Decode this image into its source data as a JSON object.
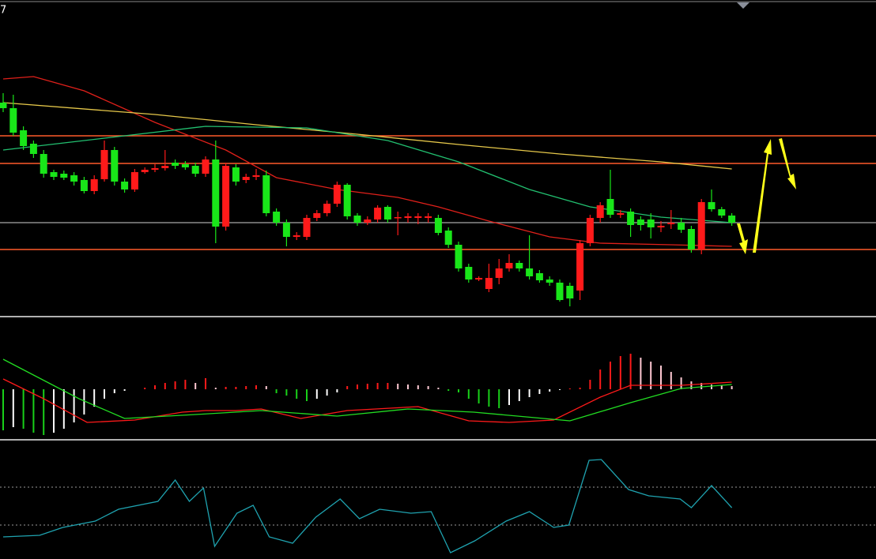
{
  "chart_data": [
    {
      "type": "candlestick",
      "title": "7",
      "xlim": [
        0,
        72
      ],
      "ylim": [
        0,
        400
      ],
      "up_color": "#ff1a1a",
      "down_color": "#19e619",
      "open": [
        270,
        263,
        235,
        218,
        205,
        182,
        180,
        178,
        172,
        158,
        173,
        210,
        170,
        160,
        182,
        185,
        187,
        194,
        192,
        190,
        180,
        198,
        113,
        188,
        172,
        176,
        178,
        132,
        118,
        100,
        100,
        124,
        130,
        142,
        166,
        127,
        118,
        122,
        138,
        124,
        124,
        124,
        124,
        124,
        108,
        90,
        62,
        46,
        34,
        48,
        60,
        67,
        60,
        54,
        46,
        42,
        38,
        32,
        92,
        124,
        148,
        128,
        132,
        122,
        122,
        112,
        116,
        118,
        110,
        84,
        144,
        135,
        127
      ],
      "close": [
        263,
        232,
        215,
        205,
        180,
        176,
        175,
        170,
        158,
        173,
        210,
        170,
        160,
        182,
        185,
        187,
        190,
        190,
        188,
        180,
        198,
        113,
        190,
        170,
        176,
        178,
        130,
        118,
        100,
        102,
        124,
        130,
        142,
        166,
        126,
        118,
        122,
        137,
        122,
        125,
        126,
        126,
        126,
        105,
        90,
        60,
        46,
        48,
        48,
        60,
        67,
        60,
        50,
        45,
        42,
        20,
        22,
        92,
        124,
        140,
        128,
        130,
        115,
        115,
        112,
        114,
        118,
        109,
        84,
        144,
        135,
        127,
        118
      ],
      "high": [
        282,
        280,
        240,
        222,
        210,
        185,
        184,
        182,
        176,
        178,
        222,
        214,
        174,
        186,
        188,
        192,
        210,
        198,
        196,
        194,
        202,
        222,
        194,
        192,
        180,
        186,
        184,
        136,
        122,
        106,
        128,
        134,
        146,
        170,
        168,
        130,
        126,
        140,
        140,
        132,
        130,
        130,
        130,
        128,
        112,
        94,
        66,
        50,
        66,
        72,
        78,
        70,
        102,
        58,
        50,
        46,
        42,
        96,
        128,
        144,
        185,
        134,
        136,
        126,
        130,
        120,
        134,
        124,
        114,
        148,
        160,
        138,
        130
      ],
      "low": [
        258,
        228,
        210,
        200,
        175,
        172,
        172,
        165,
        155,
        154,
        170,
        165,
        156,
        157,
        180,
        182,
        184,
        186,
        185,
        176,
        176,
        92,
        108,
        165,
        168,
        172,
        126,
        114,
        88,
        96,
        96,
        120,
        126,
        138,
        122,
        114,
        115,
        118,
        118,
        102,
        118,
        116,
        118,
        102,
        86,
        56,
        42,
        44,
        30,
        40,
        56,
        56,
        46,
        42,
        38,
        18,
        12,
        20,
        88,
        118,
        124,
        124,
        100,
        108,
        98,
        106,
        110,
        105,
        80,
        78,
        132,
        124,
        114
      ],
      "lines": [
        {
          "color": "#e0201a",
          "x": [
            0,
            3,
            8,
            15,
            22,
            27,
            33,
            39,
            43,
            48,
            54,
            59,
            66,
            72
          ],
          "values": [
            300,
            303,
            285,
            245,
            210,
            175,
            160,
            150,
            138,
            120,
            100,
            92,
            90,
            88
          ]
        },
        {
          "color": "#e6c84a",
          "x": [
            0,
            15,
            25,
            35,
            45,
            55,
            65,
            72
          ],
          "values": [
            270,
            255,
            242,
            230,
            217,
            205,
            195,
            186
          ]
        },
        {
          "color": "#22c070",
          "x": [
            0,
            10,
            20,
            30,
            38,
            45,
            52,
            58,
            65,
            72
          ],
          "values": [
            210,
            225,
            240,
            238,
            222,
            195,
            160,
            138,
            125,
            118
          ]
        }
      ],
      "hlines": [
        {
          "value": 228,
          "color": "#ff5a2a"
        },
        {
          "value": 193,
          "color": "#ff5a2a"
        },
        {
          "value": 84,
          "color": "#ff5a2a"
        },
        {
          "value": 118,
          "color": "#8c8c8c"
        }
      ]
    },
    {
      "type": "macd",
      "xlim": [
        0,
        72
      ],
      "ylim": [
        -62,
        89
      ],
      "values": [
        -52,
        -48,
        -50,
        -55,
        -58,
        -55,
        -50,
        -42,
        -32,
        -22,
        -12,
        -5,
        -2,
        0,
        2,
        5,
        8,
        10,
        12,
        8,
        14,
        2,
        3,
        3,
        4,
        5,
        4,
        -5,
        -8,
        -12,
        -15,
        -12,
        -8,
        -4,
        4,
        6,
        7,
        8,
        8,
        7,
        6,
        5,
        4,
        2,
        -2,
        -4,
        -12,
        -18,
        -22,
        -24,
        -20,
        -15,
        -10,
        -6,
        -3,
        -1,
        1,
        2,
        12,
        25,
        35,
        42,
        45,
        40,
        35,
        30,
        22,
        15,
        10,
        8,
        6,
        5,
        4
      ],
      "series": [
        {
          "color": "#ff1a1a",
          "x": [
            0,
            4,
            8.3,
            13,
            17.7,
            20,
            23,
            25.5,
            29.4,
            34,
            41,
            46,
            50,
            54.4,
            59,
            62,
            67,
            72
          ],
          "values": [
            13,
            -12,
            -42,
            -39,
            -29,
            -27,
            -27,
            -25,
            -37,
            -27,
            -22,
            -40,
            -42,
            -39,
            -10,
            5,
            5,
            9
          ]
        },
        {
          "color": "#22dd22",
          "x": [
            0,
            3,
            7.5,
            12,
            19,
            25.5,
            33,
            40,
            46.5,
            56,
            62,
            67,
            72
          ],
          "values": [
            38,
            18,
            -12,
            -37,
            -32,
            -27,
            -34,
            -25,
            -29,
            -40,
            -17,
            1,
            6
          ]
        }
      ]
    },
    {
      "type": "line",
      "xlim": [
        0,
        72
      ],
      "ylim": [
        0,
        148
      ],
      "series": [
        {
          "color": "#1fa3b0",
          "x": [
            0,
            3.6,
            5.9,
            9.1,
            11.4,
            15.3,
            17,
            18.4,
            19.8,
            20.9,
            23.1,
            24.7,
            26.3,
            28.6,
            30.9,
            33.3,
            35.2,
            37.2,
            40.3,
            42.3,
            44.2,
            46.6,
            49.7,
            52,
            54.4,
            55.9,
            57.9,
            59.1,
            61.8,
            63.8,
            66.9,
            68,
            70,
            72
          ],
          "values": [
            28,
            30,
            40,
            48,
            63,
            73,
            100,
            73,
            90,
            16,
            58,
            68,
            28,
            20,
            53,
            76,
            51,
            63,
            58,
            60,
            8,
            23,
            48,
            60,
            40,
            43,
            125,
            126,
            88,
            80,
            76,
            65,
            93,
            65
          ]
        }
      ],
      "hlines": [
        91,
        43
      ]
    }
  ]
}
